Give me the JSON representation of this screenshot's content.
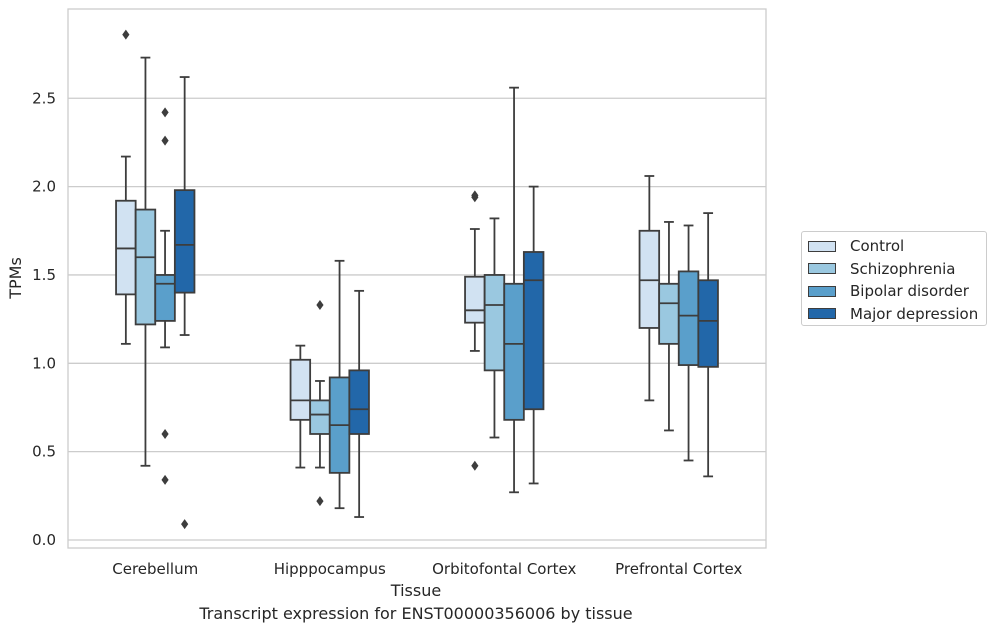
{
  "chart_data": {
    "type": "boxplot",
    "title": "Transcript expression for ENST00000356006 by tissue",
    "xlabel": "Tissue",
    "ylabel": "TPMs",
    "ylim": [
      -0.04,
      2.9
    ],
    "yticks": [
      0.0,
      0.5,
      1.0,
      1.5,
      2.0,
      2.5
    ],
    "ytick_labels": [
      "0.0",
      "0.5",
      "1.0",
      "1.5",
      "2.0",
      "2.5"
    ],
    "grid": true,
    "legend_position": "right",
    "categories": [
      "Cerebellum",
      "Hipppocampus",
      "Orbitofontal Cortex",
      "Prefrontal Cortex"
    ],
    "series": [
      {
        "name": "Control",
        "color": "#d1e2f2",
        "boxes": [
          {
            "whisker_low": 1.11,
            "q1": 1.39,
            "median": 1.65,
            "q3": 1.92,
            "whisker_high": 2.17,
            "outliers": [
              2.86
            ]
          },
          {
            "whisker_low": 0.41,
            "q1": 0.68,
            "median": 0.79,
            "q3": 1.02,
            "whisker_high": 1.1,
            "outliers": []
          },
          {
            "whisker_low": 1.07,
            "q1": 1.23,
            "median": 1.3,
            "q3": 1.49,
            "whisker_high": 1.76,
            "outliers": [
              1.94,
              1.95,
              0.42
            ]
          },
          {
            "whisker_low": 0.79,
            "q1": 1.2,
            "median": 1.47,
            "q3": 1.75,
            "whisker_high": 2.06,
            "outliers": []
          }
        ]
      },
      {
        "name": "Schizophrenia",
        "color": "#9ac8e0",
        "boxes": [
          {
            "whisker_low": 0.42,
            "q1": 1.22,
            "median": 1.6,
            "q3": 1.87,
            "whisker_high": 2.73,
            "outliers": []
          },
          {
            "whisker_low": 0.41,
            "q1": 0.6,
            "median": 0.71,
            "q3": 0.79,
            "whisker_high": 0.9,
            "outliers": [
              1.33,
              0.22
            ]
          },
          {
            "whisker_low": 0.58,
            "q1": 0.96,
            "median": 1.33,
            "q3": 1.5,
            "whisker_high": 1.82,
            "outliers": []
          },
          {
            "whisker_low": 0.62,
            "q1": 1.11,
            "median": 1.34,
            "q3": 1.45,
            "whisker_high": 1.8,
            "outliers": []
          }
        ]
      },
      {
        "name": "Bipolar disorder",
        "color": "#5a9fcb",
        "boxes": [
          {
            "whisker_low": 1.09,
            "q1": 1.24,
            "median": 1.45,
            "q3": 1.5,
            "whisker_high": 1.75,
            "outliers": [
              2.42,
              2.26,
              0.6,
              0.34
            ]
          },
          {
            "whisker_low": 0.18,
            "q1": 0.38,
            "median": 0.65,
            "q3": 0.92,
            "whisker_high": 1.58,
            "outliers": []
          },
          {
            "whisker_low": 0.27,
            "q1": 0.68,
            "median": 1.11,
            "q3": 1.45,
            "whisker_high": 2.56,
            "outliers": []
          },
          {
            "whisker_low": 0.45,
            "q1": 0.99,
            "median": 1.27,
            "q3": 1.52,
            "whisker_high": 1.78,
            "outliers": []
          }
        ]
      },
      {
        "name": "Major depression",
        "color": "#2267a9",
        "boxes": [
          {
            "whisker_low": 1.16,
            "q1": 1.4,
            "median": 1.67,
            "q3": 1.98,
            "whisker_high": 2.62,
            "outliers": [
              0.09
            ]
          },
          {
            "whisker_low": 0.13,
            "q1": 0.6,
            "median": 0.74,
            "q3": 0.96,
            "whisker_high": 1.41,
            "outliers": []
          },
          {
            "whisker_low": 0.32,
            "q1": 0.74,
            "median": 1.47,
            "q3": 1.63,
            "whisker_high": 2.0,
            "outliers": []
          },
          {
            "whisker_low": 0.36,
            "q1": 0.98,
            "median": 1.24,
            "q3": 1.47,
            "whisker_high": 1.85,
            "outliers": []
          }
        ]
      }
    ]
  }
}
